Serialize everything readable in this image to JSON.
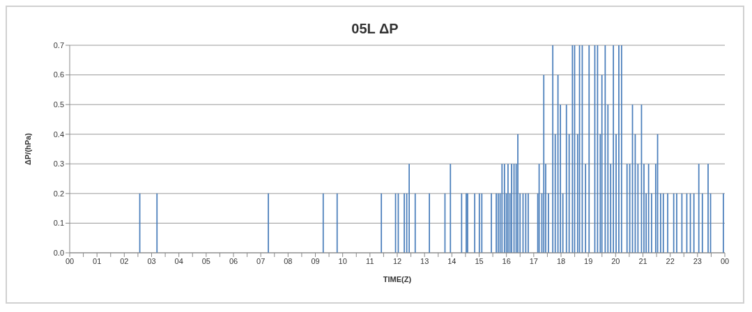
{
  "chart_data": {
    "type": "bar",
    "title": "05L ΔP",
    "xlabel": "TIME(Z)",
    "ylabel": "ΔP/(hPa)",
    "color": "#4a7ebb",
    "x": [
      2.57,
      3.2,
      7.28,
      9.29,
      9.8,
      11.42,
      11.94,
      12.04,
      12.26,
      12.35,
      12.44,
      12.66,
      13.18,
      13.75,
      13.95,
      14.36,
      14.53,
      14.58,
      14.84,
      15.01,
      15.1,
      15.45,
      15.63,
      15.7,
      15.77,
      15.84,
      15.93,
      16.0,
      16.06,
      16.13,
      16.19,
      16.28,
      16.36,
      16.42,
      16.5,
      16.61,
      16.71,
      16.8,
      17.15,
      17.2,
      17.3,
      17.37,
      17.44,
      17.54,
      17.7,
      17.79,
      17.89,
      17.98,
      18.07,
      18.2,
      18.3,
      18.42,
      18.5,
      18.61,
      18.68,
      18.78,
      18.9,
      19.03,
      19.24,
      19.34,
      19.44,
      19.5,
      19.62,
      19.72,
      19.82,
      19.92,
      20.02,
      20.12,
      20.22,
      20.42,
      20.52,
      20.62,
      20.72,
      20.82,
      20.95,
      21.04,
      21.12,
      21.21,
      21.32,
      21.47,
      21.54,
      21.65,
      21.75,
      21.91,
      22.13,
      22.24,
      22.43,
      22.61,
      22.74,
      22.87,
      23.05,
      23.18,
      23.39,
      23.48,
      23.95
    ],
    "values": [
      0.2,
      0.2,
      0.2,
      0.2,
      0.2,
      0.2,
      0.2,
      0.2,
      0.2,
      0.2,
      0.3,
      0.2,
      0.2,
      0.2,
      0.3,
      0.2,
      0.2,
      0.2,
      0.2,
      0.2,
      0.2,
      0.2,
      0.2,
      0.2,
      0.2,
      0.3,
      0.3,
      0.2,
      0.3,
      0.2,
      0.3,
      0.3,
      0.3,
      0.4,
      0.2,
      0.2,
      0.2,
      0.2,
      0.2,
      0.3,
      0.2,
      0.6,
      0.3,
      0.2,
      0.7,
      0.4,
      0.6,
      0.5,
      0.2,
      0.5,
      0.4,
      0.7,
      0.7,
      0.4,
      0.7,
      0.7,
      0.3,
      0.7,
      0.7,
      0.7,
      0.4,
      0.6,
      0.7,
      0.5,
      0.3,
      0.7,
      0.4,
      0.7,
      0.7,
      0.3,
      0.3,
      0.5,
      0.4,
      0.3,
      0.5,
      0.3,
      0.2,
      0.3,
      0.2,
      0.3,
      0.4,
      0.2,
      0.2,
      0.2,
      0.2,
      0.2,
      0.2,
      0.2,
      0.2,
      0.2,
      0.3,
      0.2,
      0.3,
      0.2,
      0.2
    ],
    "xlim": [
      0,
      24
    ],
    "xticks": [
      {
        "value": 0,
        "label": "00"
      },
      {
        "value": 0.5,
        "label": null
      },
      {
        "value": 1,
        "label": "01"
      },
      {
        "value": 1.5,
        "label": null
      },
      {
        "value": 2,
        "label": "02"
      },
      {
        "value": 2.5,
        "label": null
      },
      {
        "value": 3,
        "label": "03"
      },
      {
        "value": 3.5,
        "label": null
      },
      {
        "value": 4,
        "label": "04"
      },
      {
        "value": 4.5,
        "label": null
      },
      {
        "value": 5,
        "label": "05"
      },
      {
        "value": 5.5,
        "label": null
      },
      {
        "value": 6,
        "label": "06"
      },
      {
        "value": 6.5,
        "label": null
      },
      {
        "value": 7,
        "label": "07"
      },
      {
        "value": 7.5,
        "label": null
      },
      {
        "value": 8,
        "label": "08"
      },
      {
        "value": 8.5,
        "label": null
      },
      {
        "value": 9,
        "label": "09"
      },
      {
        "value": 9.5,
        "label": null
      },
      {
        "value": 10,
        "label": "10"
      },
      {
        "value": 10.5,
        "label": null
      },
      {
        "value": 11,
        "label": "11"
      },
      {
        "value": 11.5,
        "label": null
      },
      {
        "value": 12,
        "label": "12"
      },
      {
        "value": 12.5,
        "label": null
      },
      {
        "value": 13,
        "label": "13"
      },
      {
        "value": 13.5,
        "label": null
      },
      {
        "value": 14,
        "label": "14"
      },
      {
        "value": 14.5,
        "label": null
      },
      {
        "value": 15,
        "label": "15"
      },
      {
        "value": 15.5,
        "label": null
      },
      {
        "value": 16,
        "label": "16"
      },
      {
        "value": 16.5,
        "label": null
      },
      {
        "value": 17,
        "label": "17"
      },
      {
        "value": 17.5,
        "label": null
      },
      {
        "value": 18,
        "label": "18"
      },
      {
        "value": 18.5,
        "label": null
      },
      {
        "value": 19,
        "label": "19"
      },
      {
        "value": 19.5,
        "label": null
      },
      {
        "value": 20,
        "label": "20"
      },
      {
        "value": 20.5,
        "label": null
      },
      {
        "value": 21,
        "label": "21"
      },
      {
        "value": 21.5,
        "label": null
      },
      {
        "value": 22,
        "label": "22"
      },
      {
        "value": 22.5,
        "label": null
      },
      {
        "value": 23,
        "label": "23"
      },
      {
        "value": 23.5,
        "label": null
      },
      {
        "value": 24,
        "label": "00"
      }
    ],
    "ylim": [
      0,
      0.7
    ],
    "yticks": [
      {
        "value": 0,
        "label": "0.0"
      },
      0.1,
      0.2,
      0.3,
      0.4,
      0.5,
      0.6,
      0.7
    ],
    "grid": "y"
  }
}
